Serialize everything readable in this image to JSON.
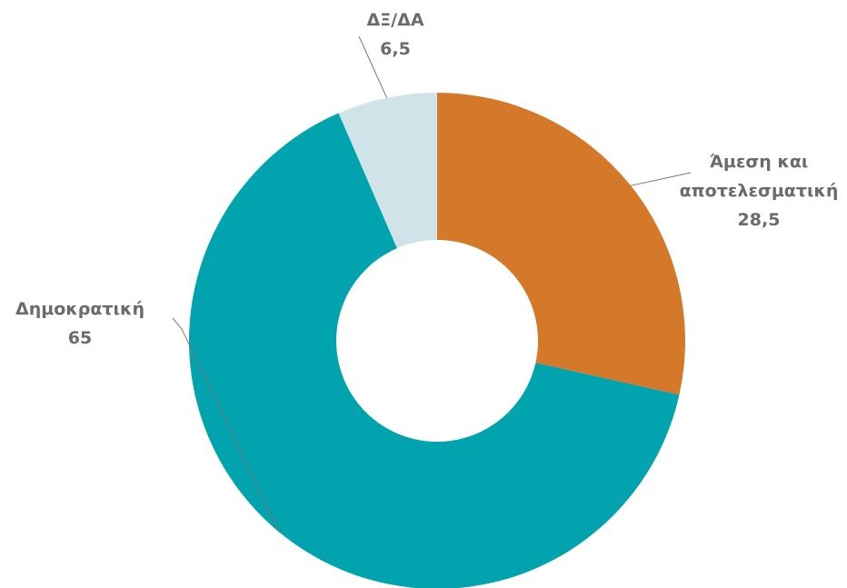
{
  "chart_data": {
    "type": "pie",
    "categories": [
      "Άμεση και αποτελεσματική",
      "Δημοκρατική",
      "ΔΞ/ΔΑ"
    ],
    "values": [
      28.5,
      65,
      6.5
    ],
    "value_labels": [
      "28,5",
      "65",
      "6,5"
    ],
    "colors": [
      "#d4782a",
      "#00a3ae",
      "#d0e3e8"
    ]
  }
}
